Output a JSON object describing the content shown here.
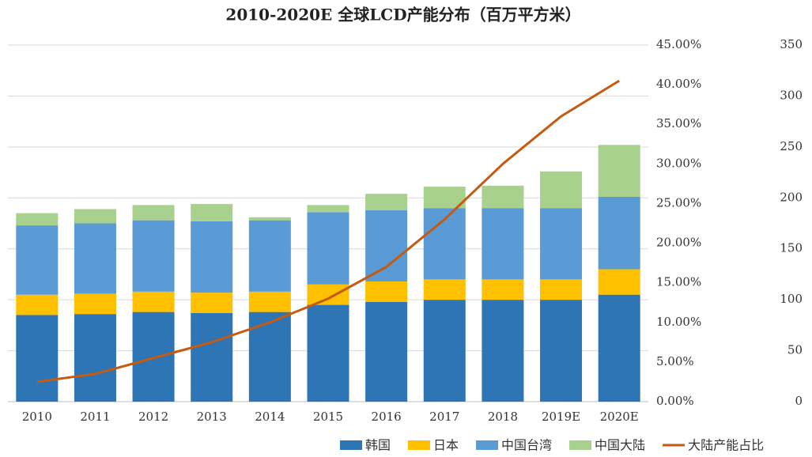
{
  "chart_data": {
    "type": "bar",
    "title": "2010-2020E 全球LCD产能分布（百万平方米）",
    "categories": [
      "2010",
      "2011",
      "2012",
      "2013",
      "2014",
      "2015",
      "2016",
      "2017",
      "2018",
      "2019E",
      "2020E"
    ],
    "series": [
      {
        "name": "韩国",
        "color": "#2e75b6",
        "values": [
          85,
          86,
          88,
          87,
          88,
          95,
          98,
          100,
          100,
          100,
          105
        ]
      },
      {
        "name": "日本",
        "color": "#ffc000",
        "values": [
          20,
          20,
          20,
          20,
          20,
          20,
          20,
          20,
          20,
          20,
          25
        ]
      },
      {
        "name": "中国台湾",
        "color": "#5b9bd5",
        "values": [
          68,
          69,
          70,
          70,
          70,
          71,
          70,
          70,
          70,
          70,
          71
        ]
      },
      {
        "name": "中国大陆",
        "color": "#a9d18e",
        "values": [
          12,
          14,
          15,
          17,
          3,
          7,
          16,
          21,
          22,
          36,
          51
        ]
      },
      {
        "name": "大陆产能占比",
        "color": "#c55a11",
        "type": "line",
        "axis": "y2",
        "values": [
          2.5,
          3.5,
          5.5,
          7.5,
          10,
          13,
          17,
          23,
          30,
          36,
          40.5
        ]
      }
    ],
    "ylim": [
      0,
      350
    ],
    "yticks": [
      0,
      50,
      100,
      150,
      200,
      250,
      300,
      350
    ],
    "y2lim": [
      0,
      45
    ],
    "y2ticks": [
      {
        "value": 0,
        "label": "0.00%"
      },
      {
        "value": 5,
        "label": "5.00%"
      },
      {
        "value": 10,
        "label": "10.00%"
      },
      {
        "value": 15,
        "label": "15.00%"
      },
      {
        "value": 20,
        "label": "20.00%"
      },
      {
        "value": 25,
        "label": "25.00%"
      },
      {
        "value": 30,
        "label": "30.00%"
      },
      {
        "value": 35,
        "label": "35.00%"
      },
      {
        "value": 40,
        "label": "40.00%"
      },
      {
        "value": 45,
        "label": "45.00%"
      }
    ],
    "grid": true
  }
}
